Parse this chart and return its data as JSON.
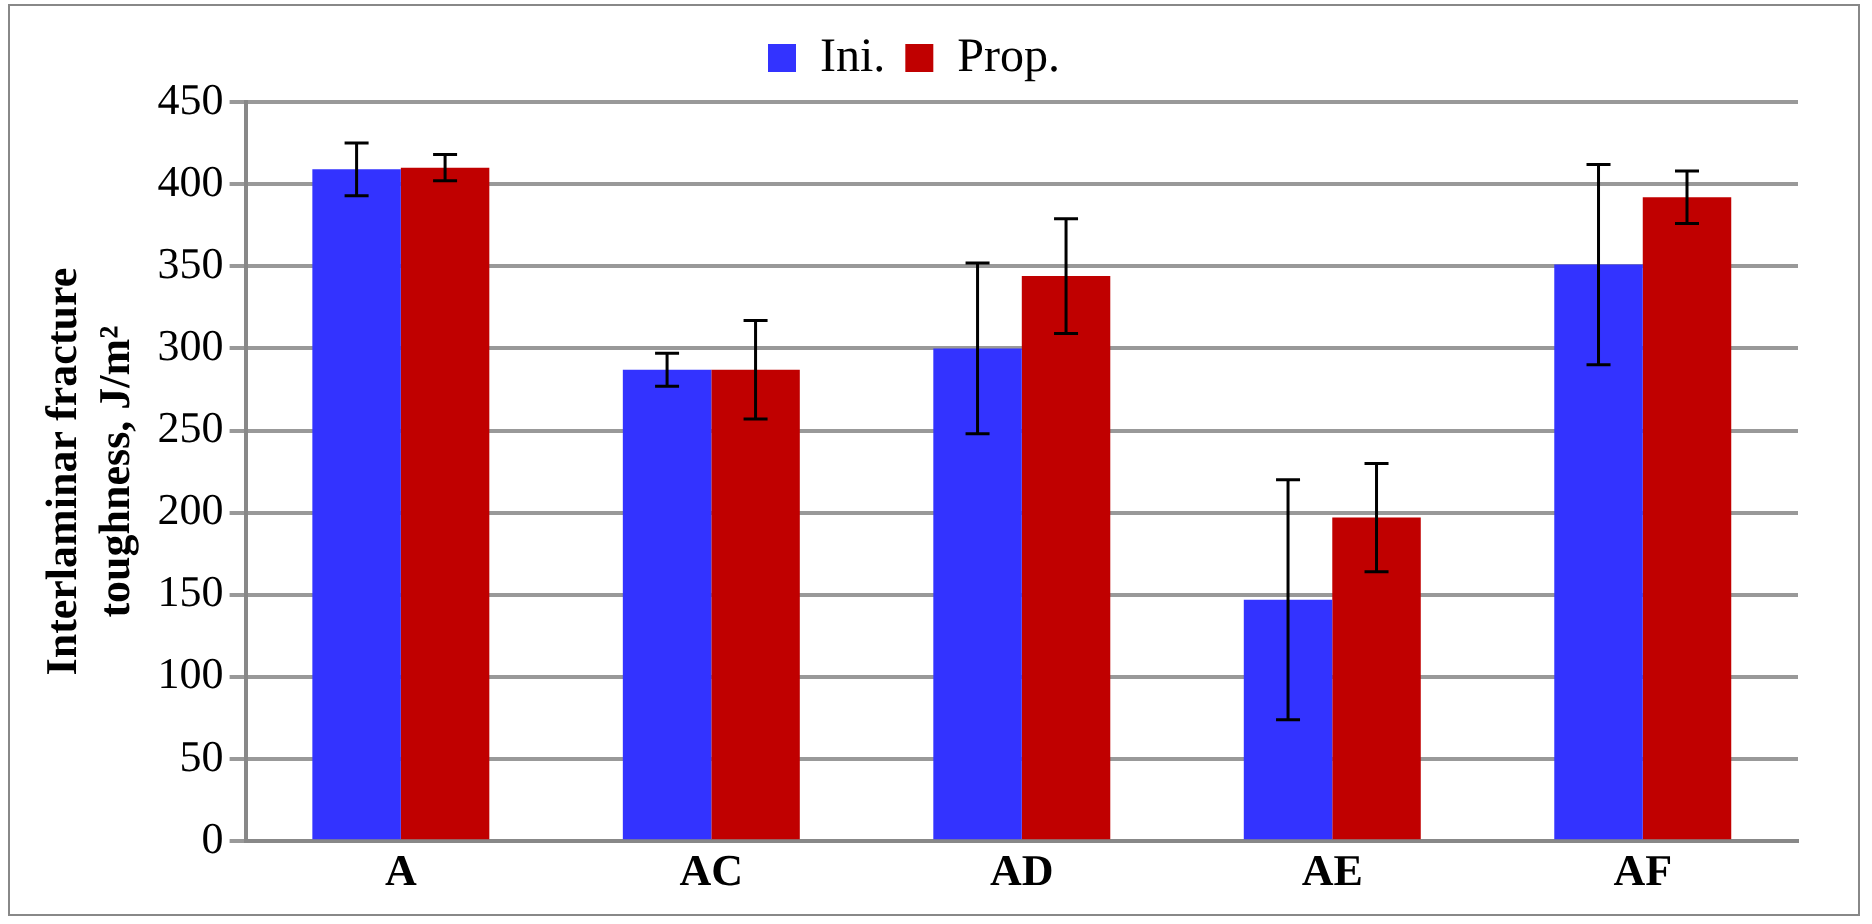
{
  "chart_data": {
    "type": "bar",
    "ylabel": "Interlaminar fracture toughness, J/m²",
    "categories": [
      "A",
      "AC",
      "AD",
      "AE",
      "AF"
    ],
    "series": [
      {
        "name": "Ini.",
        "color": "#3333ff",
        "values": [
          409,
          287,
          300,
          147,
          351
        ],
        "errors": [
          16,
          10,
          52,
          73,
          61
        ]
      },
      {
        "name": "Prop.",
        "color": "#c00000",
        "values": [
          410,
          287,
          344,
          197,
          392
        ],
        "errors": [
          8,
          30,
          35,
          33,
          16
        ]
      }
    ],
    "ylim": [
      0,
      450
    ],
    "yticks": [
      0,
      50,
      100,
      150,
      200,
      250,
      300,
      350,
      400,
      450
    ],
    "grid": "y",
    "legend": "top"
  }
}
